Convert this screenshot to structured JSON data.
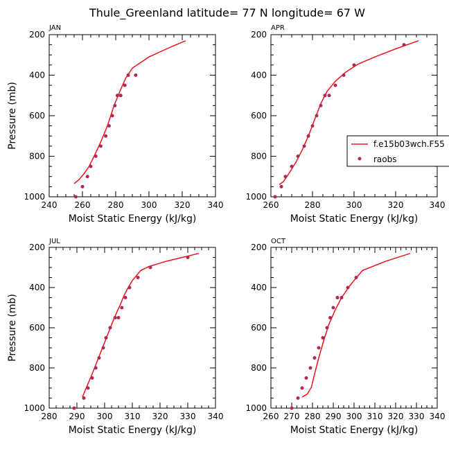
{
  "title": "Thule_Greenland  latitude= 77 N longitude= 67 W",
  "colors": {
    "model": "#e8141c",
    "obs": "#b02858",
    "axis": "#000000"
  },
  "legend": {
    "model_label": "f.e15b03wch.F55",
    "obs_label": "raobs",
    "panel": "APR"
  },
  "chart_data": [
    {
      "type": "line",
      "title": "JAN",
      "xlabel": "Moist Static Energy (kJ/kg)",
      "ylabel": "Pressure (mb)",
      "xlim": [
        240,
        340
      ],
      "ylim": [
        1000,
        200
      ],
      "xticks": [
        240,
        260,
        280,
        300,
        320,
        340
      ],
      "yticks": [
        200,
        400,
        600,
        800,
        1000
      ],
      "series": [
        {
          "name": "f.e15b03wch.F55",
          "kind": "line",
          "x": [
            255,
            258,
            261,
            264,
            267,
            271,
            275,
            279,
            283,
            286,
            290,
            300,
            312,
            322
          ],
          "y": [
            935,
            915,
            885,
            850,
            800,
            730,
            650,
            550,
            470,
            415,
            365,
            310,
            265,
            230
          ]
        },
        {
          "name": "raobs",
          "kind": "scatter",
          "x": [
            256,
            260,
            263,
            265,
            268,
            271,
            274,
            276,
            278,
            279.5,
            281,
            283,
            285.5,
            287.5,
            292
          ],
          "y": [
            1000,
            950,
            900,
            850,
            800,
            750,
            700,
            650,
            600,
            550,
            500,
            500,
            450,
            400,
            400
          ]
        }
      ]
    },
    {
      "type": "line",
      "title": "APR",
      "xlabel": "Moist Static Energy (kJ/kg)",
      "ylabel": "",
      "xlim": [
        260,
        340
      ],
      "ylim": [
        1000,
        200
      ],
      "xticks": [
        260,
        280,
        300,
        320,
        340
      ],
      "yticks": [
        200,
        400,
        600,
        800,
        1000
      ],
      "series": [
        {
          "name": "f.e15b03wch.F55",
          "kind": "line",
          "x": [
            264,
            266,
            269,
            272,
            275,
            278,
            281,
            284,
            287,
            291,
            296,
            302,
            310,
            320,
            331
          ],
          "y": [
            940,
            925,
            880,
            830,
            770,
            700,
            620,
            540,
            480,
            430,
            385,
            345,
            310,
            270,
            230
          ]
        },
        {
          "name": "raobs",
          "kind": "scatter",
          "x": [
            262,
            265,
            267,
            270,
            273,
            276,
            278,
            280,
            282,
            284,
            286,
            288,
            291,
            295,
            300,
            324
          ],
          "y": [
            1000,
            950,
            900,
            850,
            800,
            750,
            700,
            650,
            600,
            550,
            500,
            500,
            450,
            400,
            350,
            250
          ]
        }
      ]
    },
    {
      "type": "line",
      "title": "JUL",
      "xlabel": "Moist Static Energy (kJ/kg)",
      "ylabel": "Pressure (mb)",
      "xlim": [
        280,
        340
      ],
      "ylim": [
        1000,
        200
      ],
      "xticks": [
        280,
        290,
        300,
        310,
        320,
        330,
        340
      ],
      "yticks": [
        200,
        400,
        600,
        800,
        1000
      ],
      "series": [
        {
          "name": "f.e15b03wch.F55",
          "kind": "line",
          "x": [
            292,
            293.5,
            295.5,
            297.5,
            299.5,
            301.5,
            303.5,
            305.5,
            307,
            308.5,
            310,
            313,
            316,
            322,
            334
          ],
          "y": [
            945,
            895,
            830,
            760,
            690,
            620,
            550,
            490,
            440,
            400,
            365,
            315,
            295,
            270,
            230
          ]
        },
        {
          "name": "raobs",
          "kind": "scatter",
          "x": [
            289,
            292.5,
            294,
            295.5,
            296.8,
            298,
            299.5,
            300.5,
            302,
            303.8,
            305,
            306.2,
            307.5,
            309,
            312,
            316.5,
            330
          ],
          "y": [
            1000,
            950,
            900,
            850,
            800,
            750,
            700,
            650,
            600,
            550,
            550,
            500,
            450,
            400,
            350,
            300,
            250
          ]
        }
      ]
    },
    {
      "type": "line",
      "title": "OCT",
      "xlabel": "Moist Static Energy (kJ/kg)",
      "ylabel": "",
      "xlim": [
        260,
        340
      ],
      "ylim": [
        1000,
        200
      ],
      "xticks": [
        260,
        270,
        280,
        290,
        300,
        310,
        320,
        330,
        340
      ],
      "yticks": [
        200,
        400,
        600,
        800,
        1000
      ],
      "series": [
        {
          "name": "f.e15b03wch.F55",
          "kind": "line",
          "x": [
            275,
            277.5,
            279.5,
            281,
            283,
            285.5,
            288,
            291,
            294,
            298,
            304,
            315,
            327
          ],
          "y": [
            945,
            930,
            895,
            830,
            750,
            660,
            580,
            510,
            450,
            390,
            315,
            270,
            230
          ]
        },
        {
          "name": "raobs",
          "kind": "scatter",
          "x": [
            270,
            273,
            275,
            277,
            279,
            281,
            283,
            285,
            287,
            288.5,
            290,
            292,
            294,
            297,
            301
          ],
          "y": [
            1000,
            950,
            900,
            850,
            800,
            750,
            700,
            650,
            600,
            550,
            500,
            450,
            450,
            400,
            350
          ]
        }
      ]
    }
  ]
}
